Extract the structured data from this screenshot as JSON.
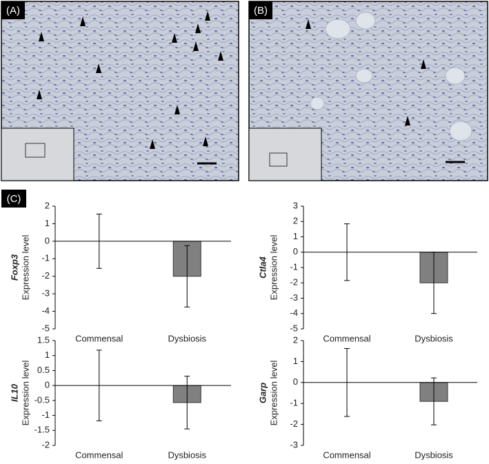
{
  "panels": {
    "a": "(A)",
    "b": "(B)",
    "c": "(C)"
  },
  "chart_data": [
    {
      "type": "bar",
      "ylabel_gene": "Foxp3",
      "ylabel": "Expression level",
      "categories": [
        "Commensal",
        "Dysbiosis"
      ],
      "values": [
        0,
        -2
      ],
      "errors": [
        1.55,
        1.75
      ],
      "color": "#808080",
      "ylim": [
        -5,
        2
      ],
      "yticks": [
        -5,
        -4,
        -3,
        -2,
        -1,
        0,
        1,
        2
      ]
    },
    {
      "type": "bar",
      "ylabel_gene": "Ctla4",
      "ylabel": "Expression level",
      "categories": [
        "Commensal",
        "Dysbiosis"
      ],
      "values": [
        0,
        -2
      ],
      "errors": [
        1.85,
        2.0
      ],
      "color": "#808080",
      "ylim": [
        -5,
        3
      ],
      "yticks": [
        -5,
        -4,
        -3,
        -2,
        -1,
        0,
        1,
        2,
        3
      ]
    },
    {
      "type": "bar",
      "ylabel_gene": "IL10",
      "ylabel": "Expression level",
      "categories": [
        "Commensal",
        "Dysbiosis"
      ],
      "values": [
        0,
        -0.57
      ],
      "errors": [
        1.18,
        0.88
      ],
      "color": "#808080",
      "ylim": [
        -2,
        1.5
      ],
      "yticks": [
        -2,
        -1.5,
        -1,
        -0.5,
        0,
        0.5,
        1,
        1.5
      ]
    },
    {
      "type": "bar",
      "ylabel_gene": "Garp",
      "ylabel": "Expression level",
      "categories": [
        "Commensal",
        "Dysbiosis"
      ],
      "values": [
        0,
        -0.9
      ],
      "errors": [
        1.62,
        1.12
      ],
      "color": "#808080",
      "ylim": [
        -3,
        2
      ],
      "yticks": [
        -3,
        -2,
        -1,
        0,
        1,
        2
      ]
    }
  ]
}
